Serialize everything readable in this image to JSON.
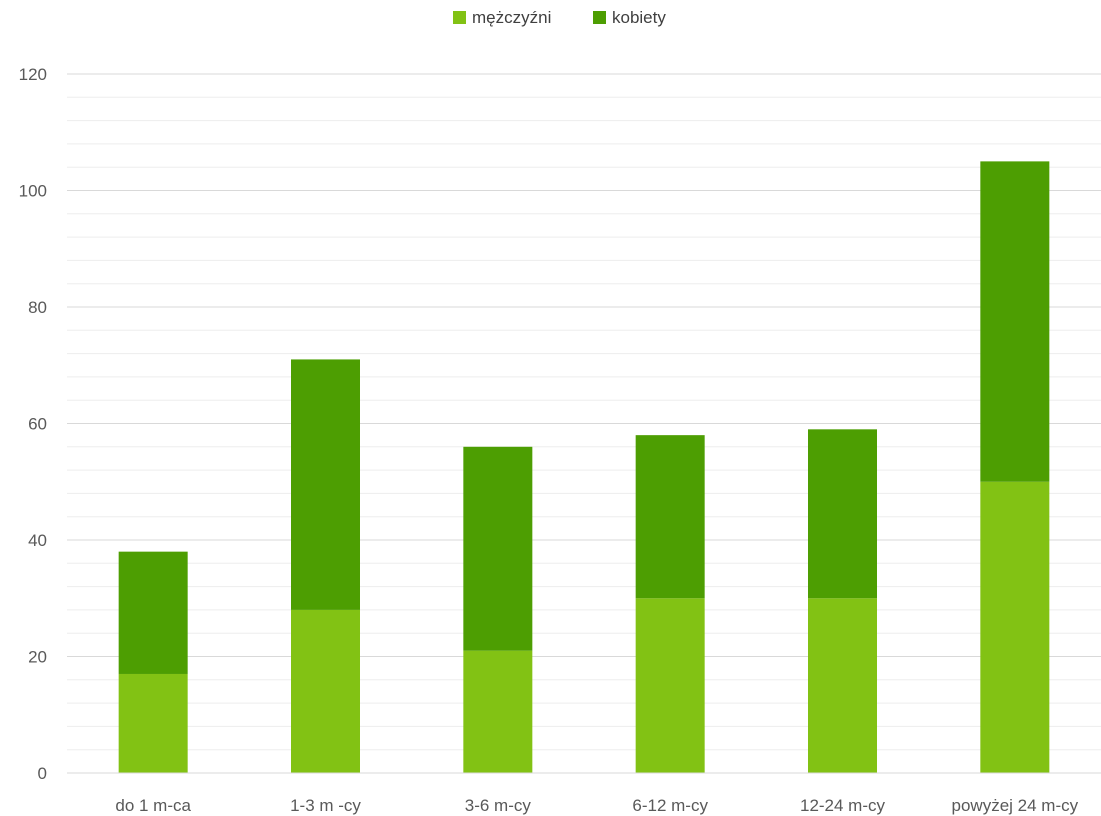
{
  "chart_data": {
    "type": "bar",
    "stacked": true,
    "title": "",
    "xlabel": "",
    "ylabel": "",
    "categories": [
      "do 1 m-ca",
      "1-3 m -cy",
      "3-6 m-cy",
      "6-12 m-cy",
      "12-24 m-cy",
      "powyżej 24 m-cy"
    ],
    "series": [
      {
        "name": "mężczyźni",
        "values": [
          17,
          28,
          21,
          30,
          30,
          50
        ],
        "color": "#82C214"
      },
      {
        "name": "kobiety",
        "values": [
          21,
          43,
          35,
          28,
          29,
          55
        ],
        "color": "#4D9E02"
      }
    ],
    "ylim": [
      0,
      120
    ],
    "y_ticks": [
      0,
      20,
      40,
      60,
      80,
      100,
      120
    ],
    "grid": true,
    "legend_position": "top"
  }
}
